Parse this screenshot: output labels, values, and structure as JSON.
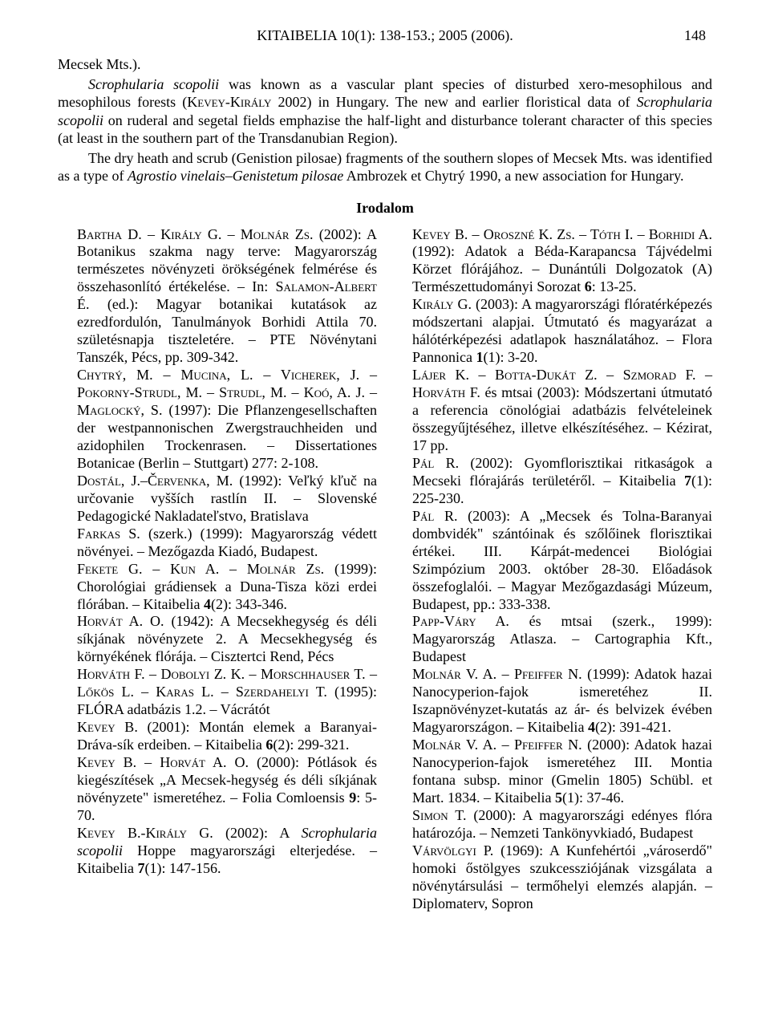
{
  "header": {
    "running": "KITAIBELIA 10(1): 138-153.; 2005 (2006).",
    "page_number": "148"
  },
  "abstract": {
    "p1": "Mecsek Mts.).",
    "p2_html": "<span class='it'>Scrophularia scopolii</span> was known as a vascular plant species of disturbed xero-mesophilous and mesophilous forests (<span class='sc'>Kevey-Király</span> 2002) in Hungary. The new and earlier floristical data of <span class='it'>Scrophularia scopolii</span> on ruderal and segetal fields emphazise the half-light and disturbance tolerant character of this species (at least in the southern part of the Transdanubian Region).",
    "p3_html": "The dry heath and scrub (Genistion pilosae) fragments of the southern slopes of Mecsek Mts. was identified as a type of <span class='it'>Agrostio vinelais–Genistetum pilosae</span> Ambrozek et Chytrý 1990, a new association for Hungary."
  },
  "section_title": "Irodalom",
  "refs": [
    "<span class='sc'>Bartha D. – Király G. – Molnár Zs.</span> (2002): A Botanikus szakma nagy terve: Magyarország természetes növényzeti örökségének felmérése és összehasonlító értékelése. – In: <span class='sc'>Salamon-Albert</span> É. (ed.): Magyar botanikai kutatások az ezredfordulón, Tanulmányok Borhidi Attila 70. születésnapja tiszteletére. – PTE Növénytani Tanszék, Pécs, pp. 309-342.",
    "<span class='sc'>Chytrý, M. – Mucina, L. – Vicherek, J. – Pokorny-Strudl, M. – Strudl, M. – Koó, A. J. – Maglocký, S.</span> (1997): Die Pflanzengesellschaften der westpannonischen Zwergstrauchheiden und azidophilen Trockenrasen. – Dissertationes Botanicae (Berlin – Stuttgart) 277: 2-108.",
    "<span class='sc'>Dostál, J.–Červenka, M.</span> (1992): Veľký kľuč na určovanie vyšších rastlín II. – Slovenské Pedagogické Nakladateľstvo, Bratislava",
    "<span class='sc'>Farkas S.</span> (szerk.) (1999): Magyarország védett növényei. – Mezőgazda Kiadó, Budapest.",
    "<span class='sc'>Fekete G. – Kun A. – Molnár Zs.</span> (1999): Chorológiai grádiensek a Duna-Tisza közi erdei flórában. – Kitaibelia <b>4</b>(2): 343-346.",
    "<span class='sc'>Horvát A. O.</span> (1942): A Mecsekhegység és déli síkjának növényzete 2. A Mecsekhegység és környékének flórája. – Cisztertci Rend, Pécs",
    "<span class='sc'>Horváth F. – Dobolyi Z. K. – Morschhauser T. – Lőkös L. – Karas L. – Szerdahelyi T.</span> (1995): FLÓRA adatbázis 1.2. – Vácrátót",
    "<span class='sc'>Kevey B.</span> (2001): Montán elemek a Baranyai-Dráva-sík erdeiben. – Kitaibelia <b>6</b>(2): 299-321.",
    "<span class='sc'>Kevey B. – Horvát A. O.</span> (2000): Pótlások és kiegészítések „A Mecsek-hegység és déli síkjának növényzete\" ismeretéhez. – Folia Comloensis <b>9</b>: 5-70.",
    "<span class='sc'>Kevey B.-Király G.</span> (2002): A <span class='it'>Scrophularia scopolii</span> Hoppe magyarországi elterjedése. – Kitaibelia <b>7</b>(1): 147-156.",
    "<span class='sc'>Kevey B. – Oroszné K. Zs. – Tóth I. – Borhidi A.</span> (1992): Adatok a Béda-Karapancsa Tájvédelmi Körzet flórájához. – Dunántúli Dolgozatok (A) Természettudományi Sorozat <b>6</b>: 13-25.",
    "<span class='sc'>Király G.</span> (2003): A magyarországi flóratérképezés módszertani alapjai. Útmutató és magyarázat a hálótérképezési adatlapok használatához. – Flora Pannonica <b>1</b>(1): 3-20.",
    "<span class='sc'>Lájer K. – Botta-Dukát Z. – Szmorad F. – Horváth F.</span> és mtsai (2003): Módszertani útmutató a referencia cönológiai adatbázis felvételeinek összegyűjtéséhez, illetve elkészítéséhez. – Kézirat, 17 pp.",
    "<span class='sc'>Pál R.</span> (2002): Gyomflorisztikai ritkaságok a Mecseki flórajárás területéről. – Kitaibelia <b>7</b>(1): 225-230.",
    "<span class='sc'>Pál R.</span> (2003): A „Mecsek és Tolna-Baranyai dombvidék\" szántóinak és szőlőinek florisztikai értékei. III. Kárpát-medencei Biológiai Szimpózium 2003. október 28-30. Előadások összefoglalói. – Magyar Mezőgazdasági Múzeum, Budapest, pp.: 333-338.",
    "<span class='sc'>Papp-Váry A.</span> és mtsai (szerk., 1999): Magyarország Atlasza. – Cartographia Kft., Budapest",
    "<span class='sc'>Molnár V. A. – Pfeiffer N.</span> (1999): Adatok hazai Nanocyperion-fajok ismeretéhez II. Iszapnövényzet-kutatás az ár- és belvizek évében Magyarországon. – Kitaibelia <b>4</b>(2): 391-421.",
    "<span class='sc'>Molnár V. A. – Pfeiffer N.</span> (2000): Adatok hazai Nanocyperion-fajok ismeretéhez III. Montia fontana subsp. minor (Gmelin 1805) Schübl. et Mart. 1834. – Kitaibelia <b>5</b>(1): 37-46.",
    "<span class='sc'>Simon T.</span> (2000): A magyarországi edényes flóra határozója. – Nemzeti Tankönyvkiadó, Budapest",
    "<span class='sc'>Várvölgyi P.</span> (1969): A Kunfehértói „városerdő\" homoki őstölgyes szukcessziójának vizsgálata a növénytársulási – termőhelyi elemzés alapján. – Diplomaterv, Sopron"
  ]
}
